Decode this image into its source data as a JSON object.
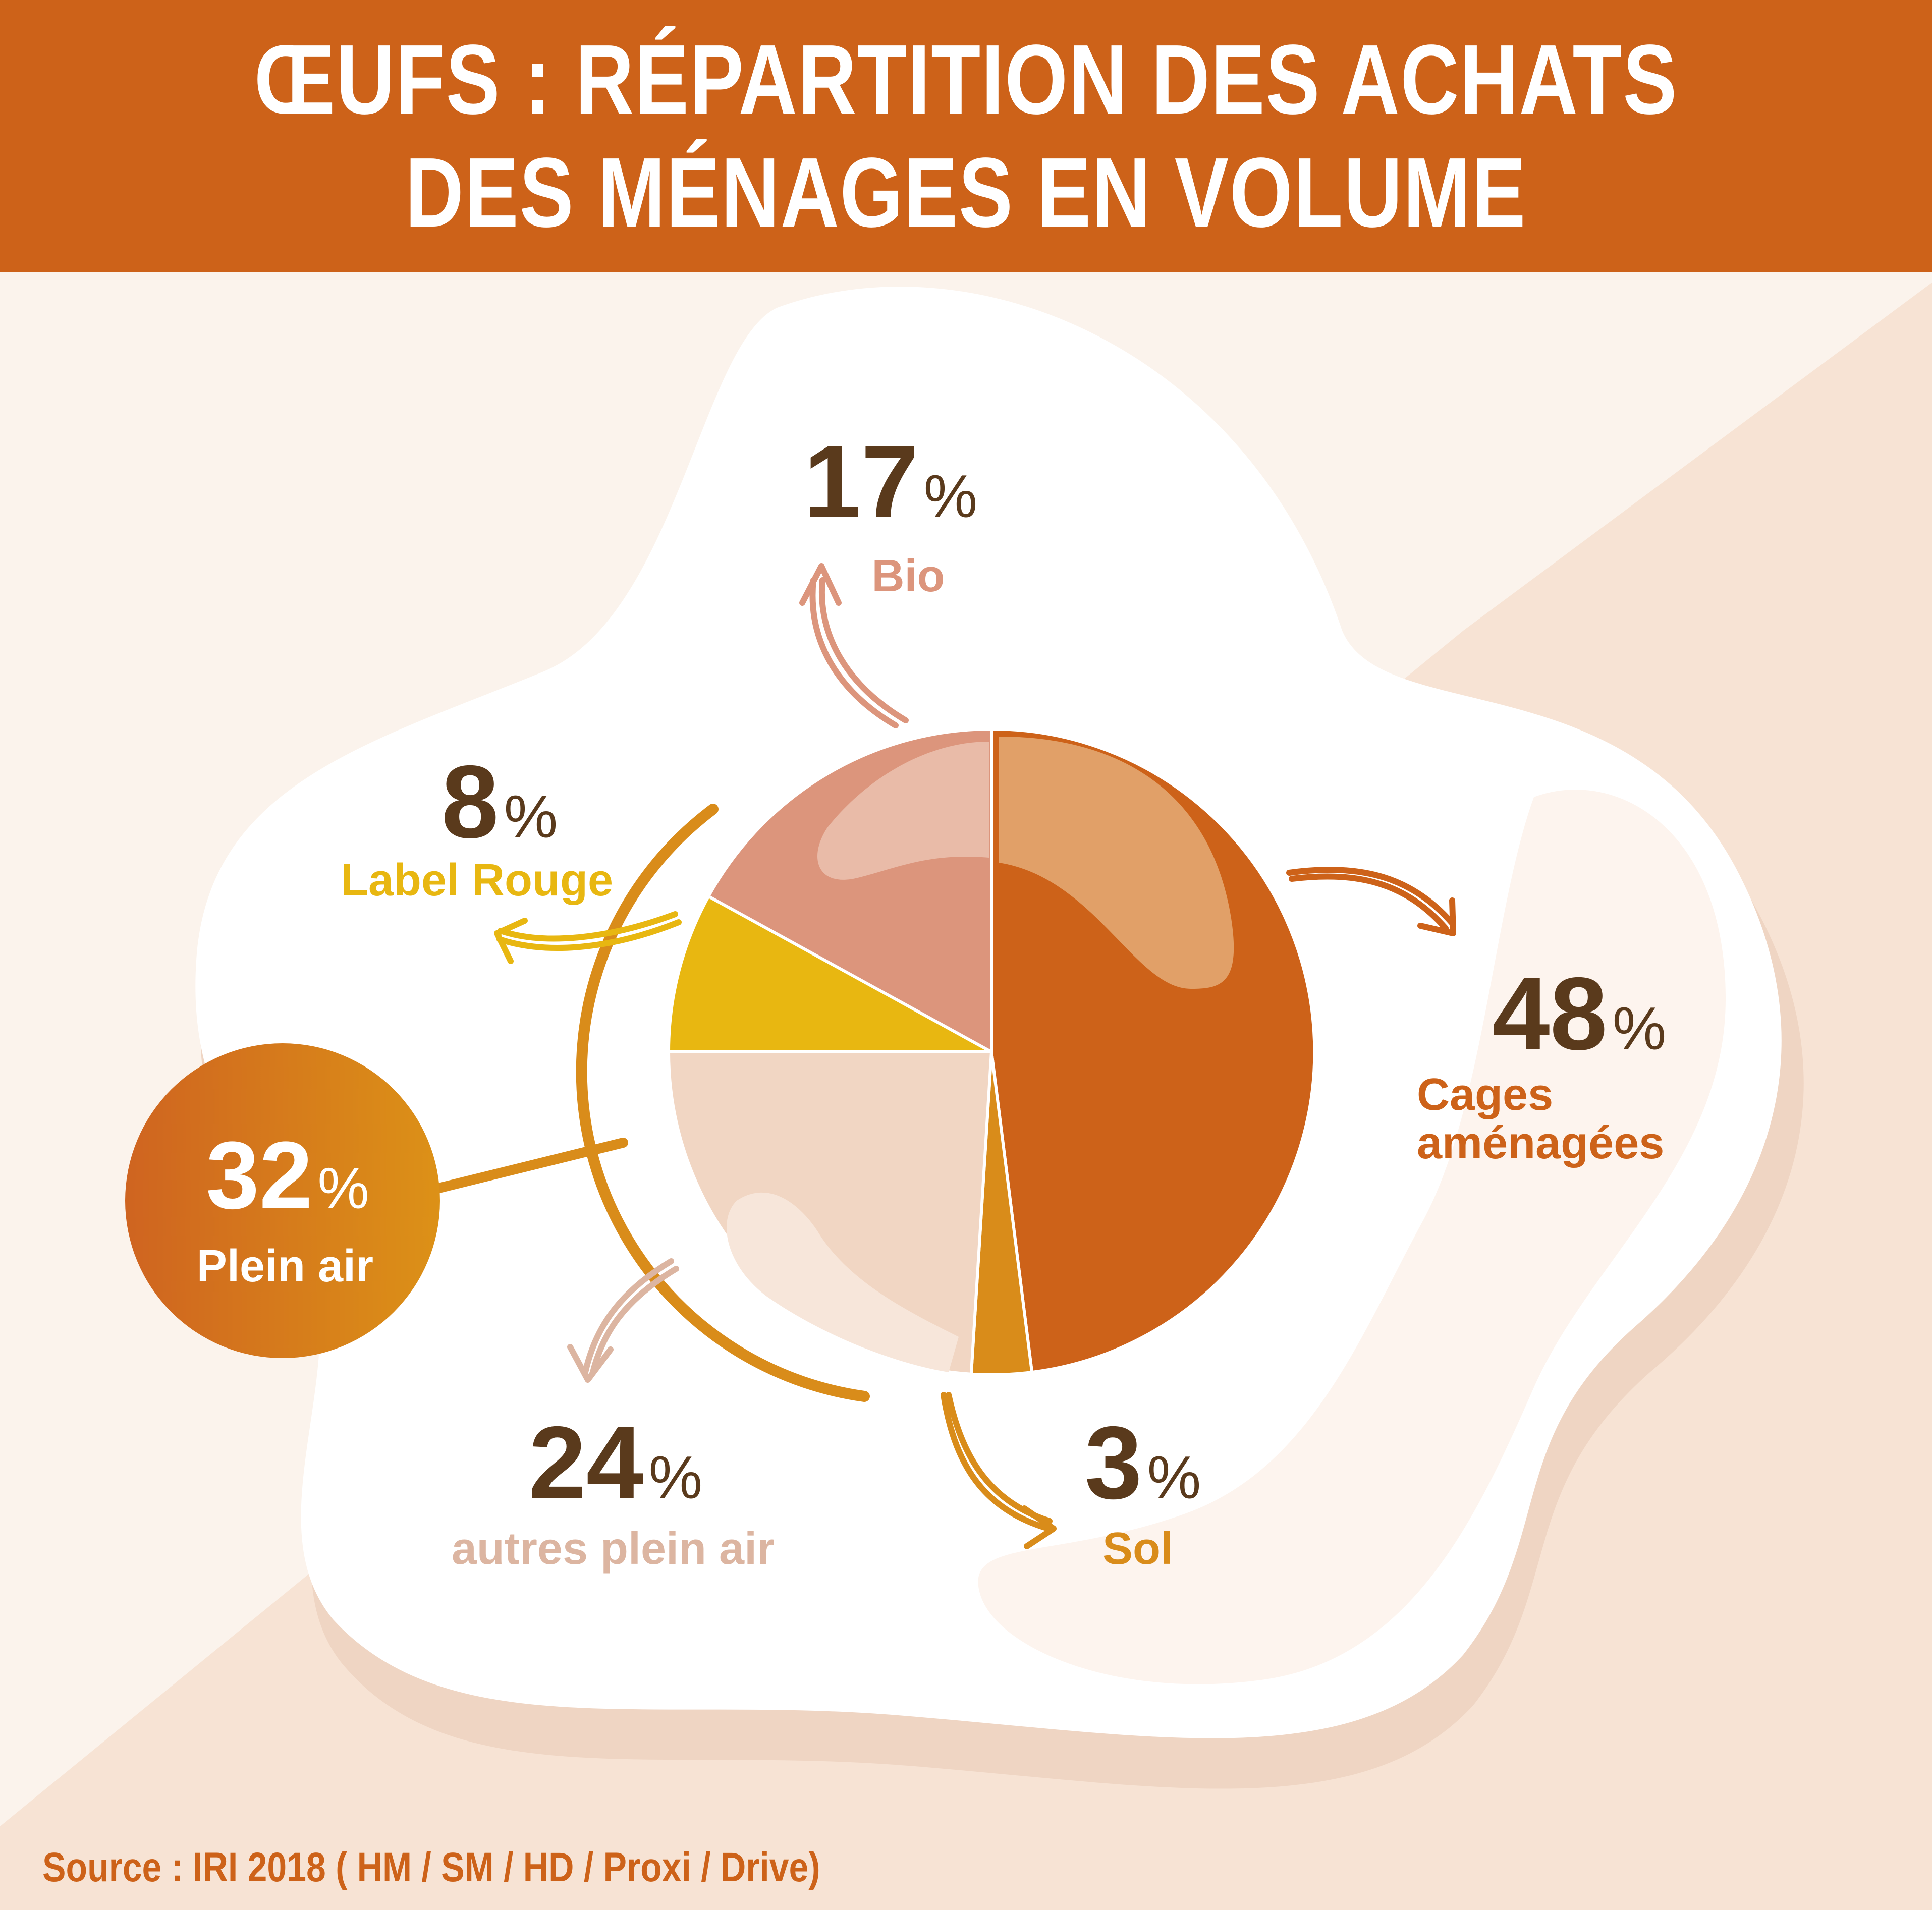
{
  "header": {
    "title_line1": "ŒUFS : RÉPARTITION DES ACHATS",
    "title_line2": "DES MÉNAGES EN VOLUME"
  },
  "source": "Source : IRI 2018 ( HM / SM / HD / Proxi / Drive)",
  "colors": {
    "header": "#cd6219",
    "cages": "#cd6219",
    "sol": "#d98c1a",
    "autres_plein_air": "#f1d6c3",
    "label_rouge": "#e8b711",
    "bio": "#dc957c",
    "plein_air_group": "#d67a17",
    "pct_text": "#5a3a1c"
  },
  "chart_data": {
    "type": "pie",
    "start": "12 o'clock, clockwise",
    "slices": [
      {
        "label": "Cages aménagées",
        "value": 48,
        "value_label": "48%"
      },
      {
        "label": "Sol",
        "value": 3,
        "value_label": "3%"
      },
      {
        "label": "autres plein air",
        "value": 24,
        "value_label": "24%"
      },
      {
        "label": "Label Rouge",
        "value": 8,
        "value_label": "8%"
      },
      {
        "label": "Bio",
        "value": 17,
        "value_label": "17%"
      }
    ],
    "group": {
      "label": "Plein air",
      "value": 32,
      "value_label": "32%",
      "includes": [
        "autres plein air",
        "Label Rouge"
      ]
    }
  }
}
